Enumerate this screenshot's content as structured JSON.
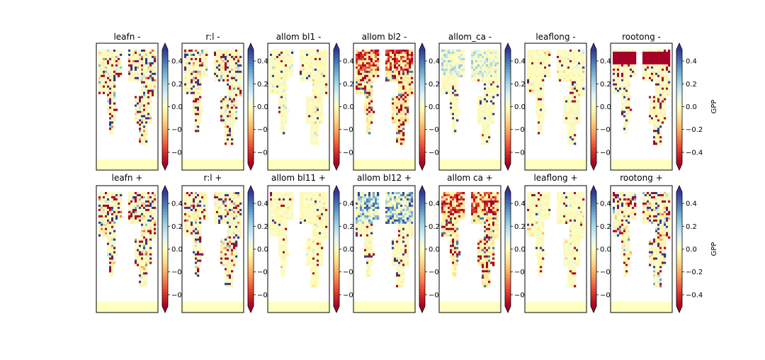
{
  "chart_data": {
    "type": "heatmap",
    "grid": {
      "rows": 2,
      "cols": 7
    },
    "colormap": "RdYlBu",
    "colorbar_extend": "both",
    "color_range": [
      -0.5,
      0.5
    ],
    "colorbar_ticks": [
      "0.4",
      "0.2",
      "0.0",
      "−0.2",
      "−0.4"
    ],
    "colorbar_label": "GPP",
    "panels": [
      {
        "title": "leafn -",
        "pattern": "mixed"
      },
      {
        "title": "r:l -",
        "pattern": "mixed"
      },
      {
        "title": "allom bl1 -",
        "pattern": "weak"
      },
      {
        "title": "allom bl2 -",
        "pattern": "negative-north"
      },
      {
        "title": "allom_ca -",
        "pattern": "weak-positive-north"
      },
      {
        "title": "leaflong -",
        "pattern": "weak"
      },
      {
        "title": "rootong -",
        "pattern": "negative-band"
      },
      {
        "title": "leafn +",
        "pattern": "mixed"
      },
      {
        "title": "r:l +",
        "pattern": "mixed"
      },
      {
        "title": "allom bl11 +",
        "pattern": "weak"
      },
      {
        "title": "allom bl12 +",
        "pattern": "positive-north"
      },
      {
        "title": "allom ca +",
        "pattern": "negative-north"
      },
      {
        "title": "leaflong +",
        "pattern": "weak"
      },
      {
        "title": "rootong +",
        "pattern": "mixed"
      }
    ]
  }
}
